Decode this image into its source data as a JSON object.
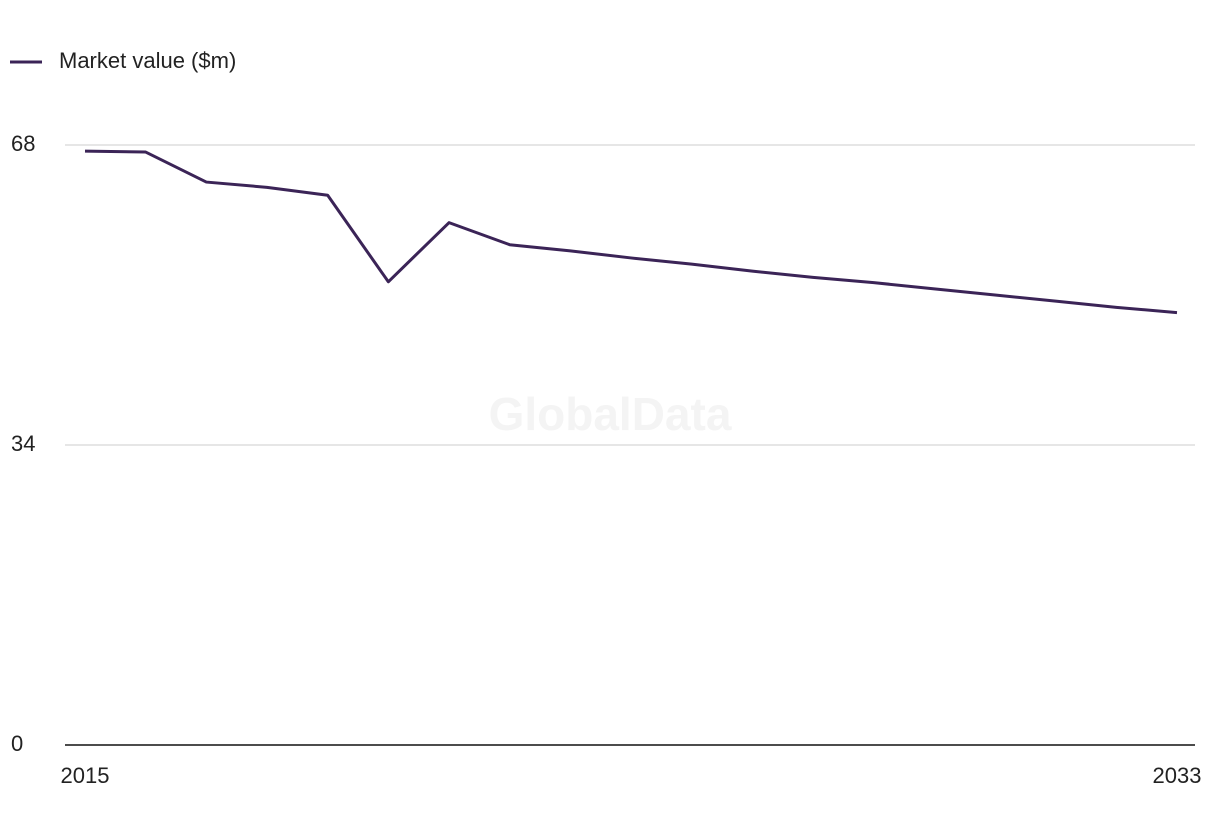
{
  "chart_data": {
    "type": "line",
    "watermark": "GlobalData",
    "x": [
      2015,
      2016,
      2017,
      2018,
      2019,
      2020,
      2021,
      2022,
      2023,
      2024,
      2025,
      2026,
      2027,
      2028,
      2029,
      2030,
      2031,
      2032,
      2033
    ],
    "series": [
      {
        "name": "Market value ($m)",
        "color": "#3b2457",
        "values": [
          67.3,
          67.2,
          63.8,
          63.2,
          62.3,
          52.5,
          59.2,
          56.7,
          56.0,
          55.2,
          54.5,
          53.7,
          53.0,
          52.4,
          51.7,
          51.0,
          50.3,
          49.6,
          49.0
        ]
      }
    ],
    "xlim": [
      2015,
      2033
    ],
    "xticks": [
      2015,
      2033
    ],
    "ylim": [
      0,
      68
    ],
    "yticks": [
      0,
      34,
      68
    ],
    "grid": true,
    "legend": "top-left"
  }
}
